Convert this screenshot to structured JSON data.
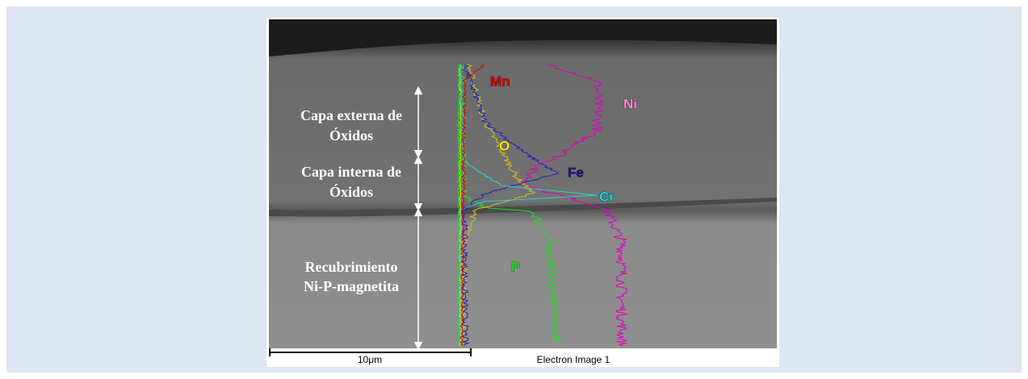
{
  "layers": {
    "outer": [
      "Capa externa de",
      "Óxidos"
    ],
    "inner": [
      "Capa interna de",
      "Óxidos"
    ],
    "coating": [
      "Recubrimiento",
      "Ni-P-magnetita"
    ]
  },
  "elements": [
    "Mn",
    "Ni",
    "O",
    "Fe",
    "Cr",
    "P"
  ],
  "scale_bar": "10μm",
  "caption": "Electron Image 1"
}
